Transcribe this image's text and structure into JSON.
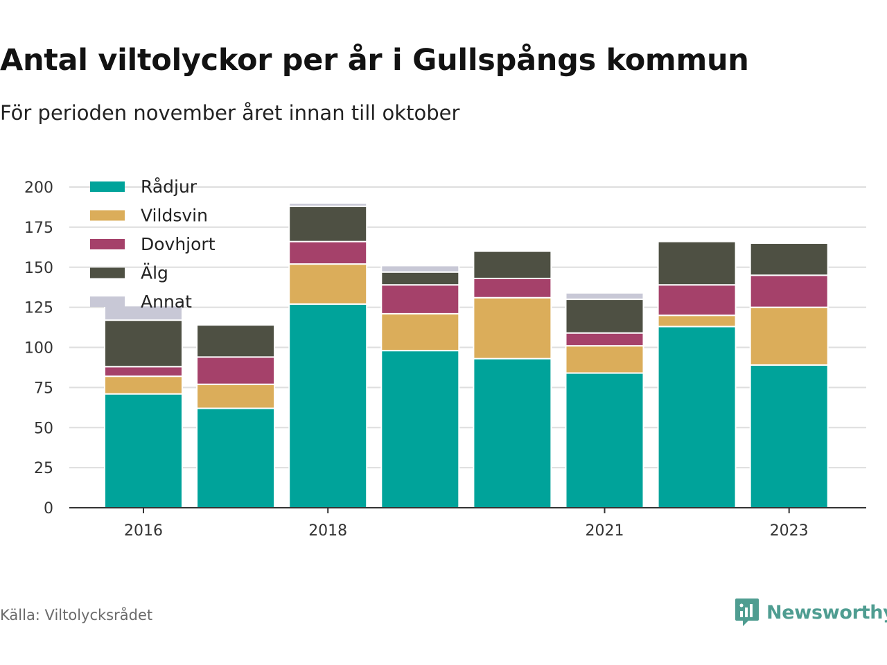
{
  "header": {
    "title": "Antal viltolyckor per år i Gullspångs kommun",
    "subtitle": "För perioden november året innan till oktober"
  },
  "footer": {
    "source": "Källa: Viltolycksrådet",
    "brand": "Newsworthy",
    "brand_icon": "newsworthy-logo-icon",
    "brand_color": "#4f9d91"
  },
  "chart_data": {
    "type": "bar",
    "stacked": true,
    "categories": [
      "2016",
      "2017",
      "2018",
      "2019",
      "2020",
      "2021",
      "2022",
      "2023"
    ],
    "tick_labels": [
      "2016",
      "",
      "2018",
      "",
      "",
      "2021",
      "",
      "2023"
    ],
    "y_ticks": [
      0,
      25,
      50,
      75,
      100,
      125,
      150,
      175,
      200
    ],
    "ylim": [
      0,
      200
    ],
    "grid": true,
    "legend_position": "top-left",
    "series": [
      {
        "name": "Rådjur",
        "color": "#00a39a",
        "values": [
          71,
          62,
          127,
          98,
          93,
          84,
          113,
          89
        ]
      },
      {
        "name": "Vildsvin",
        "color": "#dbad5a",
        "values": [
          11,
          15,
          25,
          23,
          38,
          17,
          7,
          36
        ]
      },
      {
        "name": "Dovhjort",
        "color": "#a5416a",
        "values": [
          6,
          17,
          14,
          18,
          12,
          8,
          19,
          20
        ]
      },
      {
        "name": "Älg",
        "color": "#4e5043",
        "values": [
          29,
          20,
          22,
          8,
          17,
          21,
          27,
          20
        ]
      },
      {
        "name": "Annat",
        "color": "#c8c8d6",
        "values": [
          9,
          0,
          2,
          4,
          0,
          4,
          0,
          0
        ]
      }
    ]
  }
}
